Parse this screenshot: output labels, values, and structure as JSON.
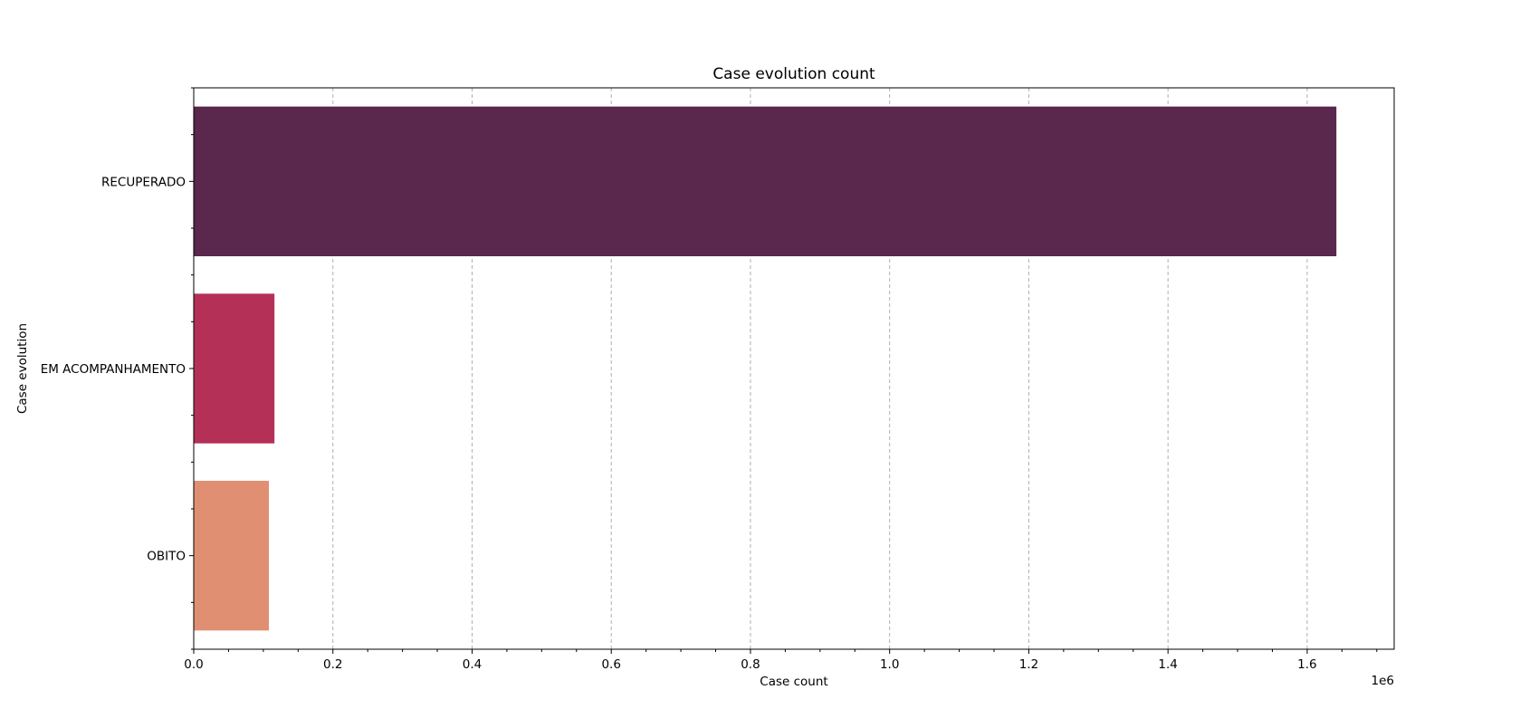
{
  "chart_data": {
    "type": "bar",
    "orientation": "horizontal",
    "title": "Case evolution count",
    "xlabel": "Case count",
    "ylabel": "Case evolution",
    "x_offset_label": "1e6",
    "x_scale": 1000000,
    "categories": [
      "RECUPERADO",
      "EM ACOMPANHAMENTO",
      "OBITO"
    ],
    "values": [
      1642000,
      116000,
      108000
    ],
    "colors": [
      "#5a274d",
      "#b53057",
      "#e08f73"
    ],
    "xlim": [
      0,
      1725000
    ],
    "xticks": [
      0,
      200000,
      400000,
      600000,
      800000,
      1000000,
      1200000,
      1400000,
      1600000
    ],
    "xtick_labels": [
      "0.0",
      "0.2",
      "0.4",
      "0.6",
      "0.8",
      "1.0",
      "1.2",
      "1.4",
      "1.6"
    ],
    "grid": {
      "x": true,
      "y": false,
      "style": "dashed"
    }
  }
}
